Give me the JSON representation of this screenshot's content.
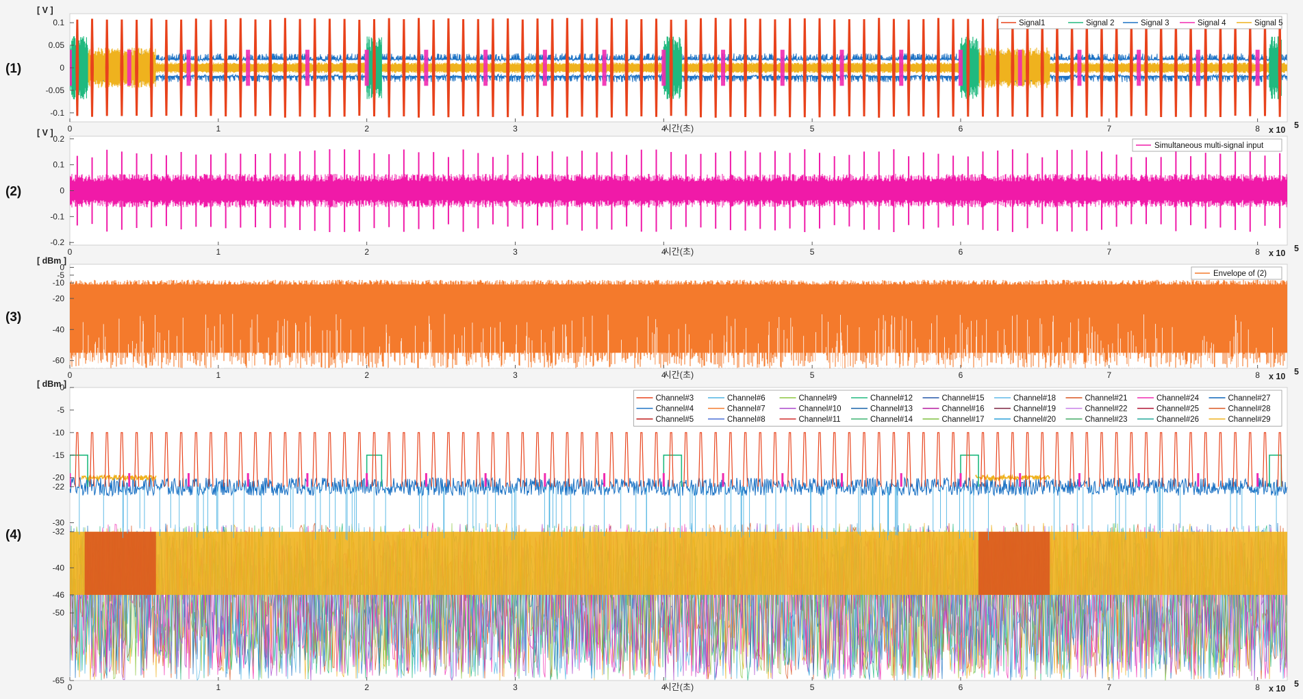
{
  "chart_data": [
    {
      "panel_label": "(1)",
      "type": "line",
      "y_unit": "[ V ]",
      "xlabel": "시간(초)",
      "x_multiplier": "x 10",
      "x_exponent": "5",
      "xlim": [
        0,
        820000
      ],
      "ylim": [
        -0.12,
        0.12
      ],
      "yticks": [
        0.1,
        0.05,
        0,
        -0.05,
        -0.1
      ],
      "ytick_labels": [
        "0.1",
        "0.05",
        "0",
        "-0.05",
        "-0.1"
      ],
      "xticks": [
        0,
        100000,
        200000,
        300000,
        400000,
        500000,
        600000,
        700000,
        800000
      ],
      "xtick_labels": [
        "0",
        "1",
        "2",
        "3",
        "4",
        "5",
        "6",
        "7",
        "8"
      ],
      "legend_position": "top-right",
      "series": [
        {
          "name": "Signal1",
          "color": "#e8431c",
          "pattern": "pulse-train",
          "pulse_period": 10000,
          "pulse_start": 5000,
          "amplitude": 0.11
        },
        {
          "name": "Signal 2",
          "color": "#20b97f",
          "pattern": "bursts",
          "bursts": [
            [
              0,
              12000
            ],
            [
              200000,
              210000
            ],
            [
              400000,
              412000
            ],
            [
              600000,
              612000
            ],
            [
              808000,
              816000
            ]
          ],
          "amplitude": 0.07
        },
        {
          "name": "Signal 3",
          "color": "#1c72c4",
          "pattern": "continuous-band",
          "band": [
            0.015,
            0.032
          ]
        },
        {
          "name": "Signal 4",
          "color": "#f02ab0",
          "pattern": "spikes",
          "period": 40000,
          "amplitude": 0.04
        },
        {
          "name": "Signal 5",
          "color": "#efb21e",
          "pattern": "bursts-band",
          "bursts": [
            [
              8000,
              58000
            ],
            [
              610000,
              660000
            ]
          ],
          "amplitude": 0.045,
          "baseline_band": 0.012
        }
      ]
    },
    {
      "panel_label": "(2)",
      "type": "line",
      "y_unit": "[ V ]",
      "xlabel": "시간(초)",
      "x_multiplier": "x 10",
      "x_exponent": "5",
      "xlim": [
        0,
        820000
      ],
      "ylim": [
        -0.21,
        0.21
      ],
      "yticks": [
        0.2,
        0.1,
        0,
        -0.1,
        -0.2
      ],
      "ytick_labels": [
        "0.2",
        "0.1",
        "0",
        "-0.1",
        "-0.2"
      ],
      "xticks": [
        0,
        100000,
        200000,
        300000,
        400000,
        500000,
        600000,
        700000,
        800000
      ],
      "xtick_labels": [
        "0",
        "1",
        "2",
        "3",
        "4",
        "5",
        "6",
        "7",
        "8"
      ],
      "legend_position": "top-right",
      "series": [
        {
          "name": "Simultaneous multi-signal input",
          "color": "#f01aa8",
          "pattern": "noise-band",
          "band": 0.065,
          "spike_period": 10000,
          "spike_start": 5000,
          "spike_amplitude": 0.16
        }
      ]
    },
    {
      "panel_label": "(3)",
      "type": "area",
      "y_unit": "[ dBm ]",
      "xlabel": "시간(초)",
      "x_multiplier": "x 10",
      "x_exponent": "5",
      "xlim": [
        0,
        820000
      ],
      "ylim": [
        -65,
        2
      ],
      "yticks": [
        0,
        -5,
        -10,
        -20,
        -40,
        -60
      ],
      "ytick_labels": [
        "0",
        "-5",
        "-10",
        "-20",
        "-40",
        "-60"
      ],
      "xticks": [
        0,
        100000,
        200000,
        300000,
        400000,
        500000,
        600000,
        700000,
        800000
      ],
      "xtick_labels": [
        "0",
        "1",
        "2",
        "3",
        "4",
        "5",
        "6",
        "7",
        "8"
      ],
      "legend_position": "top-right",
      "series": [
        {
          "name": "Envelope of (2)",
          "color": "#f47a2c",
          "pattern": "filled-envelope",
          "top": -8,
          "bottom": -65
        }
      ]
    },
    {
      "panel_label": "(4)",
      "type": "line",
      "y_unit": "[ dBm ]",
      "xlabel": "시간(초)",
      "x_multiplier": "x 10",
      "x_exponent": "5",
      "xlim": [
        0,
        820000
      ],
      "ylim": [
        -65,
        0
      ],
      "yticks": [
        0,
        -5,
        -10,
        -15,
        -20,
        -22,
        -30,
        -32,
        -40,
        -46,
        -50,
        -65
      ],
      "ytick_labels": [
        "0",
        "-5",
        "-10",
        "-15",
        "-20",
        "-22",
        "-30",
        "-32",
        "-40",
        "-46",
        "-50",
        "-65"
      ],
      "xticks": [
        0,
        100000,
        200000,
        300000,
        400000,
        500000,
        600000,
        700000,
        800000
      ],
      "xtick_labels": [
        "0",
        "1",
        "2",
        "3",
        "4",
        "5",
        "6",
        "7",
        "8"
      ],
      "legend_position": "top-right",
      "legend_columns": 9,
      "series": [
        {
          "name": "Channel#3",
          "color": "#e8431c"
        },
        {
          "name": "Channel#4",
          "color": "#1c72c4"
        },
        {
          "name": "Channel#5",
          "color": "#c01a1a"
        },
        {
          "name": "Channel#6",
          "color": "#4fb4e3"
        },
        {
          "name": "Channel#7",
          "color": "#f47a2c"
        },
        {
          "name": "Channel#8",
          "color": "#4a6fd6"
        },
        {
          "name": "Channel#9",
          "color": "#8cc63f"
        },
        {
          "name": "Channel#10",
          "color": "#a742c9"
        },
        {
          "name": "Channel#11",
          "color": "#d12c2c"
        },
        {
          "name": "Channel#12",
          "color": "#20b97f"
        },
        {
          "name": "Channel#13",
          "color": "#1560a8"
        },
        {
          "name": "Channel#14",
          "color": "#3cb371"
        },
        {
          "name": "Channel#15",
          "color": "#2356a8"
        },
        {
          "name": "Channel#16",
          "color": "#b5179e"
        },
        {
          "name": "Channel#17",
          "color": "#7fbf3f"
        },
        {
          "name": "Channel#18",
          "color": "#5fb8e8"
        },
        {
          "name": "Channel#19",
          "color": "#7a1f3d"
        },
        {
          "name": "Channel#20",
          "color": "#2a9fd8"
        },
        {
          "name": "Channel#21",
          "color": "#d9541e"
        },
        {
          "name": "Channel#22",
          "color": "#c77de8"
        },
        {
          "name": "Channel#23",
          "color": "#44aa66"
        },
        {
          "name": "Channel#24",
          "color": "#f02ab0"
        },
        {
          "name": "Channel#25",
          "color": "#b01030"
        },
        {
          "name": "Channel#26",
          "color": "#23a99a"
        },
        {
          "name": "Channel#27",
          "color": "#0c63b8"
        },
        {
          "name": "Channel#28",
          "color": "#d9541e"
        },
        {
          "name": "Channel#29",
          "color": "#efb21e"
        }
      ],
      "features": {
        "peak_train": {
          "color": "#e8431c",
          "period": 10000,
          "start": 5000,
          "peak_dBm": -10,
          "base_dBm": -22
        },
        "blue_band": {
          "color": "#1c72c4",
          "center_dBm": -22,
          "spread": 2
        },
        "green_bursts": {
          "color": "#20b97f",
          "level_dBm": -15,
          "bursts": [
            [
              0,
              12000
            ],
            [
              200000,
              210000
            ],
            [
              400000,
              412000
            ],
            [
              600000,
              612000
            ],
            [
              808000,
              816000
            ]
          ]
        },
        "yellow_bursts": {
          "color": "#efb21e",
          "level_dBm": -20,
          "bursts": [
            [
              8000,
              58000
            ],
            [
              610000,
              660000
            ]
          ]
        },
        "noise_floor": {
          "top_dBm": -30,
          "bottom_dBm": -65,
          "colors": [
            "#efb21e",
            "#d9541e",
            "#20b97f",
            "#1c72c4",
            "#a742c9",
            "#f02ab0",
            "#8cc63f",
            "#4fb4e3"
          ]
        }
      }
    }
  ]
}
